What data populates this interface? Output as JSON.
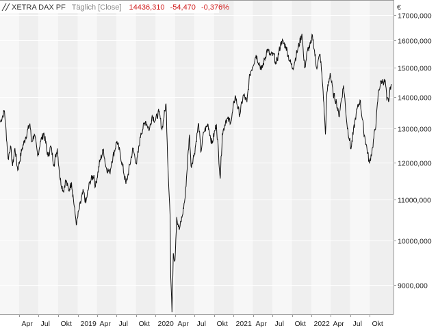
{
  "header": {
    "instrument": "XETRA DAX PF",
    "mode": "Täglich [Close]",
    "last": "14436,310",
    "change": "-54,470",
    "change_pct": "-0,376%"
  },
  "colors": {
    "background": "#ffffff",
    "band_shaded": "#efefef",
    "band_light": "#f7f7f7",
    "grid": "#ffffff",
    "line": "#111111",
    "negative": "#d11f1f",
    "muted": "#8a8a8a"
  },
  "chart_data": {
    "type": "line",
    "scale": "log",
    "currency_label": "€",
    "y_ticks": [
      {
        "value": 9000,
        "label": "9000,000"
      },
      {
        "value": 10000,
        "label": "10000,000"
      },
      {
        "value": 11000,
        "label": "11000,000"
      },
      {
        "value": 12000,
        "label": "12000,000"
      },
      {
        "value": 13000,
        "label": "13000,000"
      },
      {
        "value": 14000,
        "label": "14000,000"
      },
      {
        "value": 15000,
        "label": "15000,000"
      },
      {
        "value": 16000,
        "label": "16000,000"
      },
      {
        "value": 17000,
        "label": "17000,000"
      }
    ],
    "x_ticks": [
      {
        "date": "2018-04-01",
        "label": "Apr"
      },
      {
        "date": "2018-07-01",
        "label": "Jul"
      },
      {
        "date": "2018-10-01",
        "label": "Okt"
      },
      {
        "date": "2019-01-01",
        "label": "2019"
      },
      {
        "date": "2019-04-01",
        "label": "Apr"
      },
      {
        "date": "2019-07-01",
        "label": "Jul"
      },
      {
        "date": "2019-10-01",
        "label": "Okt"
      },
      {
        "date": "2020-01-01",
        "label": "2020"
      },
      {
        "date": "2020-04-01",
        "label": "Apr"
      },
      {
        "date": "2020-07-01",
        "label": "Jul"
      },
      {
        "date": "2020-10-01",
        "label": "Okt"
      },
      {
        "date": "2021-01-01",
        "label": "2021"
      },
      {
        "date": "2021-04-01",
        "label": "Apr"
      },
      {
        "date": "2021-07-01",
        "label": "Jul"
      },
      {
        "date": "2021-10-01",
        "label": "Okt"
      },
      {
        "date": "2022-01-01",
        "label": "2022"
      },
      {
        "date": "2022-04-01",
        "label": "Apr"
      },
      {
        "date": "2022-07-01",
        "label": "Jul"
      },
      {
        "date": "2022-10-01",
        "label": "Okt"
      }
    ],
    "x_range": [
      "2018-01-02",
      "2023-01-20"
    ],
    "y_range": [
      8400,
      17600
    ],
    "series": [
      {
        "points": [
          [
            "2018-01-03",
            13200
          ],
          [
            "2018-01-23",
            13560
          ],
          [
            "2018-02-09",
            12110
          ],
          [
            "2018-02-20",
            12480
          ],
          [
            "2018-03-02",
            11910
          ],
          [
            "2018-03-13",
            12420
          ],
          [
            "2018-03-26",
            11790
          ],
          [
            "2018-04-16",
            12420
          ],
          [
            "2018-05-03",
            12760
          ],
          [
            "2018-05-22",
            13160
          ],
          [
            "2018-05-30",
            12610
          ],
          [
            "2018-06-12",
            12830
          ],
          [
            "2018-06-28",
            12180
          ],
          [
            "2018-07-10",
            12610
          ],
          [
            "2018-07-27",
            12870
          ],
          [
            "2018-08-15",
            12170
          ],
          [
            "2018-08-28",
            12480
          ],
          [
            "2018-09-12",
            11940
          ],
          [
            "2018-09-27",
            12410
          ],
          [
            "2018-10-11",
            11540
          ],
          [
            "2018-10-26",
            11220
          ],
          [
            "2018-11-06",
            11520
          ],
          [
            "2018-11-20",
            11240
          ],
          [
            "2018-12-03",
            11460
          ],
          [
            "2018-12-20",
            10630
          ],
          [
            "2018-12-27",
            10380
          ],
          [
            "2019-01-07",
            10740
          ],
          [
            "2019-01-28",
            11220
          ],
          [
            "2019-02-08",
            10910
          ],
          [
            "2019-02-27",
            11480
          ],
          [
            "2019-03-18",
            11660
          ],
          [
            "2019-03-25",
            11340
          ],
          [
            "2019-04-15",
            12040
          ],
          [
            "2019-05-02",
            12380
          ],
          [
            "2019-05-13",
            11880
          ],
          [
            "2019-05-31",
            11720
          ],
          [
            "2019-06-10",
            12040
          ],
          [
            "2019-07-04",
            12630
          ],
          [
            "2019-07-19",
            12260
          ],
          [
            "2019-08-15",
            11420
          ],
          [
            "2019-08-23",
            11610
          ],
          [
            "2019-09-17",
            12410
          ],
          [
            "2019-10-04",
            11960
          ],
          [
            "2019-10-24",
            12850
          ],
          [
            "2019-11-15",
            13240
          ],
          [
            "2019-12-03",
            12970
          ],
          [
            "2019-12-16",
            13410
          ],
          [
            "2019-12-30",
            13250
          ],
          [
            "2020-01-17",
            13530
          ],
          [
            "2020-01-31",
            12980
          ],
          [
            "2020-02-19",
            13790
          ],
          [
            "2020-02-28",
            11890
          ],
          [
            "2020-03-09",
            10620
          ],
          [
            "2020-03-12",
            9160
          ],
          [
            "2020-03-16",
            8740
          ],
          [
            "2020-03-18",
            8440
          ],
          [
            "2020-03-24",
            9700
          ],
          [
            "2020-04-01",
            9540
          ],
          [
            "2020-04-09",
            10560
          ],
          [
            "2020-04-21",
            10250
          ],
          [
            "2020-05-06",
            10610
          ],
          [
            "2020-05-19",
            11080
          ],
          [
            "2020-06-08",
            12820
          ],
          [
            "2020-06-15",
            11910
          ],
          [
            "2020-07-01",
            12260
          ],
          [
            "2020-07-21",
            13170
          ],
          [
            "2020-07-31",
            12310
          ],
          [
            "2020-08-14",
            12900
          ],
          [
            "2020-09-03",
            13140
          ],
          [
            "2020-09-21",
            12540
          ],
          [
            "2020-10-12",
            13140
          ],
          [
            "2020-10-30",
            11560
          ],
          [
            "2020-11-09",
            12840
          ],
          [
            "2020-11-26",
            13280
          ],
          [
            "2020-12-21",
            13250
          ],
          [
            "2021-01-08",
            14050
          ],
          [
            "2021-01-29",
            13430
          ],
          [
            "2021-02-16",
            14080
          ],
          [
            "2021-03-04",
            13840
          ],
          [
            "2021-03-18",
            14780
          ],
          [
            "2021-04-16",
            15460
          ],
          [
            "2021-05-12",
            14930
          ],
          [
            "2021-06-08",
            15670
          ],
          [
            "2021-06-21",
            15450
          ],
          [
            "2021-07-09",
            15460
          ],
          [
            "2021-07-19",
            15130
          ],
          [
            "2021-08-13",
            15980
          ],
          [
            "2021-09-03",
            15780
          ],
          [
            "2021-09-20",
            15260
          ],
          [
            "2021-10-05",
            14990
          ],
          [
            "2021-10-29",
            15690
          ],
          [
            "2021-11-17",
            16250
          ],
          [
            "2021-11-26",
            15260
          ],
          [
            "2021-12-01",
            15020
          ],
          [
            "2021-12-13",
            15620
          ],
          [
            "2021-12-30",
            15900
          ],
          [
            "2022-01-05",
            16210
          ],
          [
            "2022-01-24",
            15010
          ],
          [
            "2022-02-10",
            15490
          ],
          [
            "2022-02-24",
            14200
          ],
          [
            "2022-03-07",
            12830
          ],
          [
            "2022-03-14",
            14160
          ],
          [
            "2022-03-29",
            14820
          ],
          [
            "2022-04-12",
            14120
          ],
          [
            "2022-04-28",
            13830
          ],
          [
            "2022-05-09",
            13380
          ],
          [
            "2022-05-31",
            14390
          ],
          [
            "2022-06-16",
            13130
          ],
          [
            "2022-07-05",
            12400
          ],
          [
            "2022-07-29",
            13480
          ],
          [
            "2022-08-16",
            13910
          ],
          [
            "2022-09-02",
            12960
          ],
          [
            "2022-09-29",
            11980
          ],
          [
            "2022-10-14",
            12440
          ],
          [
            "2022-10-31",
            13250
          ],
          [
            "2022-11-11",
            14220
          ],
          [
            "2022-11-24",
            14540
          ],
          [
            "2022-12-02",
            14530
          ],
          [
            "2022-12-13",
            14500
          ],
          [
            "2022-12-20",
            13890
          ],
          [
            "2022-12-30",
            13920
          ],
          [
            "2023-01-05",
            14340
          ],
          [
            "2023-01-10",
            14440
          ]
        ]
      }
    ]
  }
}
